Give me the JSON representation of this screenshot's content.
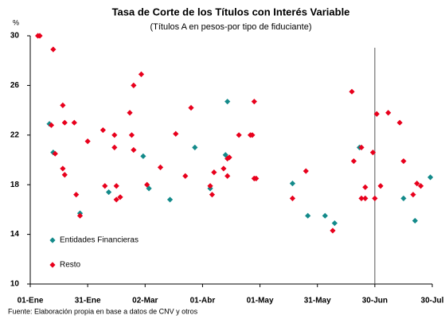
{
  "chart_data": {
    "type": "scatter",
    "title": "Tasa de Corte de los Títulos con Interés Variable",
    "subtitle": "(Títulos A en pesos-por tipo de fiduciante)",
    "y_label": "%",
    "source": "Fuente: Elaboración propia en base a datos de CNV y otros",
    "xlim": [
      0,
      210
    ],
    "xticks": [
      {
        "value": 0,
        "label": "01-Ene"
      },
      {
        "value": 30,
        "label": "31-Ene"
      },
      {
        "value": 60,
        "label": "02-Mar"
      },
      {
        "value": 90,
        "label": "01-Abr"
      },
      {
        "value": 120,
        "label": "01-May"
      },
      {
        "value": 150,
        "label": "31-May"
      },
      {
        "value": 180,
        "label": "30-Jun"
      },
      {
        "value": 210,
        "label": "30-Jul"
      }
    ],
    "ylim": [
      10,
      30
    ],
    "yticks": [
      10,
      14,
      18,
      22,
      26,
      30
    ],
    "vline": 180,
    "legend": "lower left",
    "series": [
      {
        "name": "Entidades Financieras",
        "color": "#138a8a",
        "x": [
          10,
          12,
          26,
          41,
          59,
          62,
          73,
          86,
          94,
          103,
          102,
          137,
          145,
          154,
          159,
          172,
          195,
          201,
          209
        ],
        "values": [
          22.9,
          20.6,
          15.7,
          17.4,
          20.3,
          17.7,
          16.8,
          21.0,
          17.7,
          24.7,
          20.4,
          18.1,
          15.5,
          15.5,
          14.9,
          21.0,
          16.9,
          15.1,
          18.6
        ]
      },
      {
        "name": "Resto",
        "color": "#e8001c",
        "x": [
          4,
          5,
          12,
          11,
          13,
          17,
          18,
          17,
          18,
          23,
          24,
          26,
          30,
          38,
          39,
          44,
          44,
          45,
          45,
          47,
          52,
          53,
          54,
          54,
          58,
          61,
          68,
          76,
          81,
          84,
          94,
          95,
          96,
          101,
          103,
          103,
          104,
          109,
          115,
          116,
          117,
          117,
          118,
          137,
          144,
          158,
          168,
          169,
          173,
          173,
          175,
          175,
          179,
          180,
          181,
          183,
          187,
          193,
          195,
          200,
          202,
          204
        ],
        "values": [
          30,
          30,
          28.9,
          22.8,
          20.5,
          24.4,
          23.0,
          19.3,
          18.8,
          23.0,
          17.2,
          15.5,
          21.5,
          22.4,
          17.9,
          22.0,
          21.0,
          17.9,
          16.8,
          17.0,
          23.8,
          22.0,
          20.8,
          26.0,
          26.9,
          18.0,
          19.4,
          22.1,
          18.7,
          24.2,
          17.9,
          17.2,
          19.0,
          19.3,
          18.7,
          20.1,
          20.2,
          22.0,
          22.0,
          22.0,
          24.7,
          18.5,
          18.5,
          16.9,
          19.1,
          14.3,
          25.5,
          19.9,
          21.0,
          16.9,
          17.8,
          16.9,
          20.6,
          16.9,
          23.7,
          17.9,
          23.8,
          23.0,
          19.9,
          17.2,
          18.1,
          17.9
        ]
      }
    ]
  }
}
